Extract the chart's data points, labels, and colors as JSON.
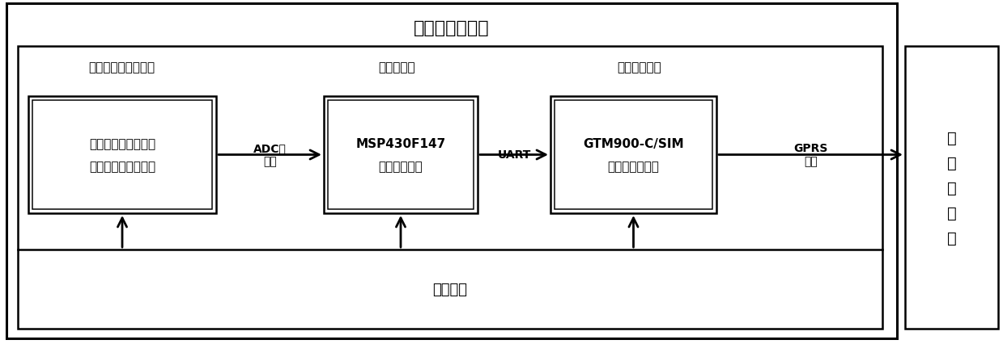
{
  "title_outer": "远程数据采集器",
  "title_remote_server": "远\n程\n服\n务\n器",
  "label_sensor_module": "传感器及其接口模块",
  "label_mcu_module": "单片机模块",
  "label_wireless_module": "无线通信模块",
  "label_power_module": "电源模块",
  "box1_line1": "传感器、传感器接口",
  "box1_line2": "及相关信号调理电路",
  "box2_line1": "MSP430F147",
  "box2_line2": "及其外围电路",
  "box3_line1": "GTM900-C/SIM",
  "box3_line2": "卡及其外围电路",
  "label_adc": "ADC或\n总线",
  "label_uart": "UART",
  "label_gprs": "GPRS\n网络",
  "bg_color": "#ffffff",
  "border_color": "#000000",
  "text_color": "#000000"
}
